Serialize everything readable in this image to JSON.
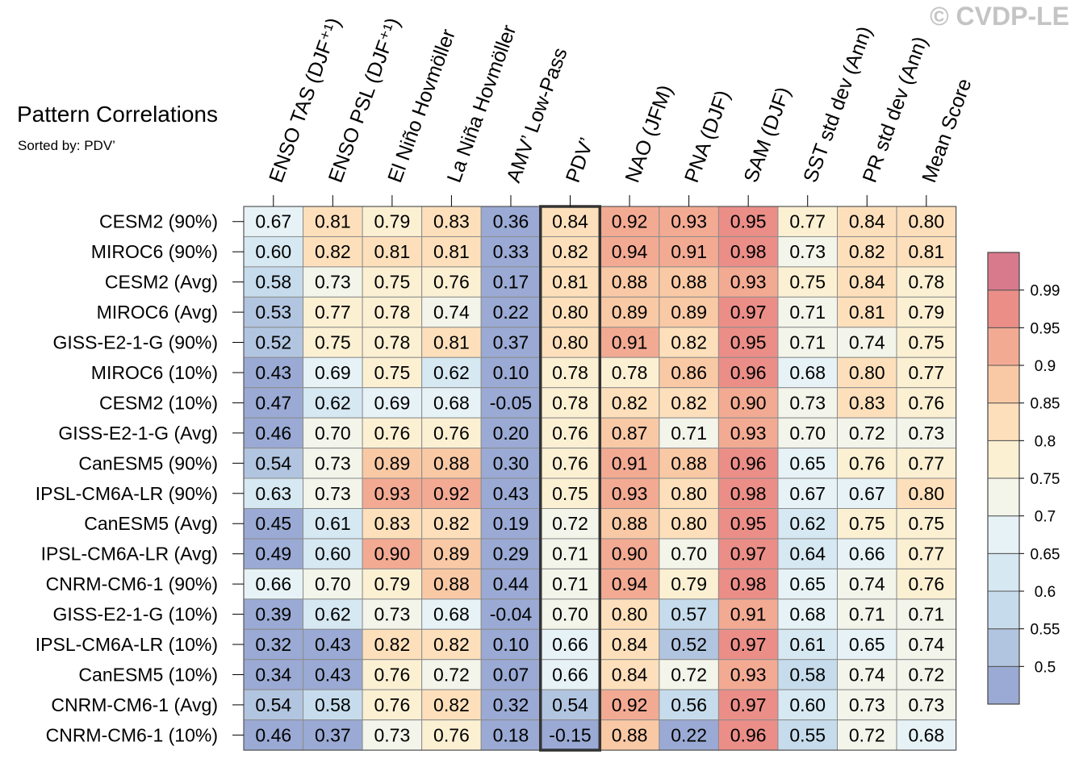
{
  "header": {
    "title": "Pattern Correlations",
    "subtitle": "Sorted by: PDV’",
    "copyright": "© CVDP-LE"
  },
  "chart_data": {
    "type": "heatmap",
    "columns": [
      "ENSO TAS (DJF⁺¹)",
      "ENSO PSL (DJF⁺¹)",
      "El Niño Hovmöller",
      "La Niña Hovmöller",
      "AMV’ Low-Pass",
      "PDV’",
      "NAO (JFM)",
      "PNA (DJF)",
      "SAM (DJF)",
      "SST std dev (Ann)",
      "PR std dev (Ann)",
      "Mean Score"
    ],
    "rows": [
      "CESM2 (90%)",
      "MIROC6 (90%)",
      "CESM2 (Avg)",
      "MIROC6 (Avg)",
      "GISS-E2-1-G (90%)",
      "MIROC6 (10%)",
      "CESM2 (10%)",
      "GISS-E2-1-G (Avg)",
      "CanESM5 (90%)",
      "IPSL-CM6A-LR (90%)",
      "CanESM5 (Avg)",
      "IPSL-CM6A-LR (Avg)",
      "CNRM-CM6-1 (90%)",
      "GISS-E2-1-G (10%)",
      "IPSL-CM6A-LR (10%)",
      "CanESM5 (10%)",
      "CNRM-CM6-1 (Avg)",
      "CNRM-CM6-1 (10%)"
    ],
    "values": [
      [
        "0.67",
        "0.81",
        "0.79",
        "0.83",
        "0.36",
        "0.84",
        "0.92",
        "0.93",
        "0.95",
        "0.77",
        "0.84",
        "0.80"
      ],
      [
        "0.60",
        "0.82",
        "0.81",
        "0.81",
        "0.33",
        "0.82",
        "0.94",
        "0.91",
        "0.98",
        "0.73",
        "0.82",
        "0.81"
      ],
      [
        "0.58",
        "0.73",
        "0.75",
        "0.76",
        "0.17",
        "0.81",
        "0.88",
        "0.88",
        "0.93",
        "0.75",
        "0.84",
        "0.78"
      ],
      [
        "0.53",
        "0.77",
        "0.78",
        "0.74",
        "0.22",
        "0.80",
        "0.89",
        "0.89",
        "0.97",
        "0.71",
        "0.81",
        "0.79"
      ],
      [
        "0.52",
        "0.75",
        "0.78",
        "0.81",
        "0.37",
        "0.80",
        "0.91",
        "0.82",
        "0.95",
        "0.71",
        "0.74",
        "0.75"
      ],
      [
        "0.43",
        "0.69",
        "0.75",
        "0.62",
        "0.10",
        "0.78",
        "0.78",
        "0.86",
        "0.96",
        "0.68",
        "0.80",
        "0.77"
      ],
      [
        "0.47",
        "0.62",
        "0.69",
        "0.68",
        "-0.05",
        "0.78",
        "0.82",
        "0.82",
        "0.90",
        "0.73",
        "0.83",
        "0.76"
      ],
      [
        "0.46",
        "0.70",
        "0.76",
        "0.76",
        "0.20",
        "0.76",
        "0.87",
        "0.71",
        "0.93",
        "0.70",
        "0.72",
        "0.73"
      ],
      [
        "0.54",
        "0.73",
        "0.89",
        "0.88",
        "0.30",
        "0.76",
        "0.91",
        "0.88",
        "0.96",
        "0.65",
        "0.76",
        "0.77"
      ],
      [
        "0.63",
        "0.73",
        "0.93",
        "0.92",
        "0.43",
        "0.75",
        "0.93",
        "0.80",
        "0.98",
        "0.67",
        "0.67",
        "0.80"
      ],
      [
        "0.45",
        "0.61",
        "0.83",
        "0.82",
        "0.19",
        "0.72",
        "0.88",
        "0.80",
        "0.95",
        "0.62",
        "0.75",
        "0.75"
      ],
      [
        "0.49",
        "0.60",
        "0.90",
        "0.89",
        "0.29",
        "0.71",
        "0.90",
        "0.70",
        "0.97",
        "0.64",
        "0.66",
        "0.77"
      ],
      [
        "0.66",
        "0.70",
        "0.79",
        "0.88",
        "0.44",
        "0.71",
        "0.94",
        "0.79",
        "0.98",
        "0.65",
        "0.74",
        "0.76"
      ],
      [
        "0.39",
        "0.62",
        "0.73",
        "0.68",
        "-0.04",
        "0.70",
        "0.80",
        "0.57",
        "0.91",
        "0.68",
        "0.71",
        "0.71"
      ],
      [
        "0.32",
        "0.43",
        "0.82",
        "0.82",
        "0.10",
        "0.66",
        "0.84",
        "0.52",
        "0.97",
        "0.61",
        "0.65",
        "0.74"
      ],
      [
        "0.34",
        "0.43",
        "0.76",
        "0.72",
        "0.07",
        "0.66",
        "0.84",
        "0.72",
        "0.93",
        "0.58",
        "0.74",
        "0.72"
      ],
      [
        "0.54",
        "0.58",
        "0.76",
        "0.82",
        "0.32",
        "0.54",
        "0.92",
        "0.56",
        "0.97",
        "0.60",
        "0.73",
        "0.73"
      ],
      [
        "0.46",
        "0.37",
        "0.73",
        "0.76",
        "0.18",
        "-0.15",
        "0.88",
        "0.22",
        "0.96",
        "0.55",
        "0.72",
        "0.68"
      ]
    ],
    "highlight_column": "PDV’",
    "colorbar": {
      "labels": [
        "0.5",
        "0.55",
        "0.6",
        "0.65",
        "0.7",
        "0.75",
        "0.8",
        "0.85",
        "0.9",
        "0.95",
        "0.99"
      ],
      "colors": [
        "#9aaad4",
        "#b2c5e0",
        "#c6dcec",
        "#d6e8f2",
        "#e6f2f6",
        "#f3f4ea",
        "#fcf0d3",
        "#fde0bb",
        "#f9c9a5",
        "#f3aa93",
        "#eb8e88",
        "#d9798c"
      ]
    }
  }
}
